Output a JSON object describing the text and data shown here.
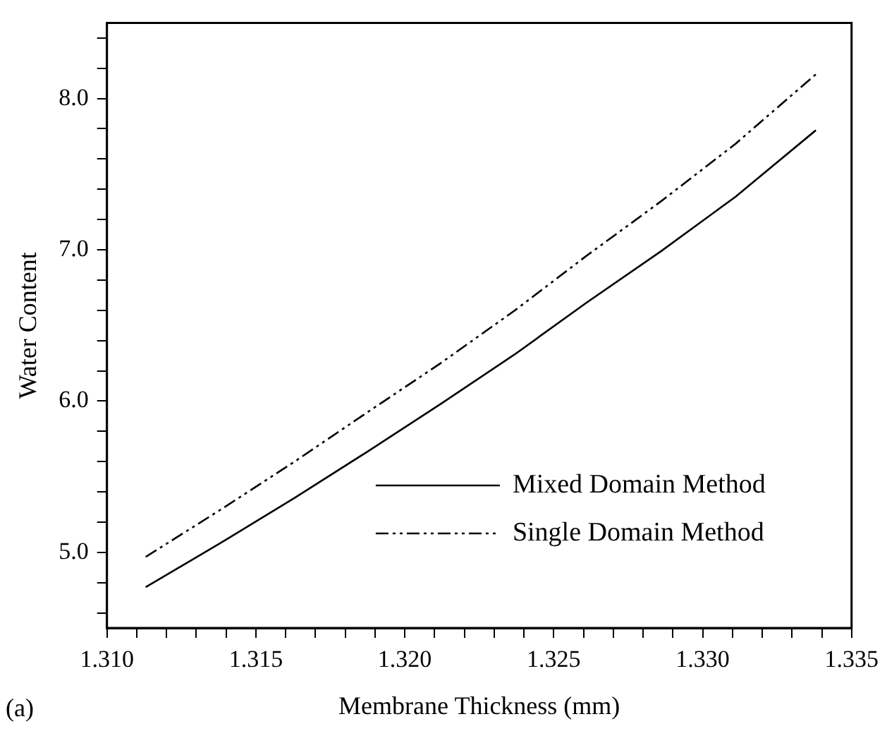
{
  "chart_data": {
    "type": "line",
    "xlabel": "Membrane Thickness (mm)",
    "ylabel": "Water Content",
    "annotations": [
      "(a)"
    ],
    "x": [
      1.3113,
      1.3138,
      1.3163,
      1.3187,
      1.3212,
      1.3237,
      1.3261,
      1.3286,
      1.3311,
      1.3338
    ],
    "series": [
      {
        "name": "Mixed Domain Method",
        "color": "#000000",
        "line_style": "solid",
        "values": [
          4.77,
          5.06,
          5.36,
          5.66,
          5.98,
          6.31,
          6.65,
          6.99,
          7.35,
          7.79
        ]
      },
      {
        "name": "Single Domain Method",
        "color": "#000000",
        "line_style": "dashed",
        "values": [
          4.97,
          5.28,
          5.6,
          5.92,
          6.25,
          6.6,
          6.96,
          7.32,
          7.7,
          8.16
        ]
      }
    ],
    "xlim": [
      1.31,
      1.335
    ],
    "ylim": [
      4.5,
      8.5
    ],
    "xticks": [
      {
        "value": 1.31,
        "label": "1.310"
      },
      {
        "value": 1.311,
        "label": null
      },
      {
        "value": 1.312,
        "label": null
      },
      {
        "value": 1.313,
        "label": null
      },
      {
        "value": 1.314,
        "label": null
      },
      {
        "value": 1.315,
        "label": "1.315"
      },
      {
        "value": 1.316,
        "label": null
      },
      {
        "value": 1.317,
        "label": null
      },
      {
        "value": 1.318,
        "label": null
      },
      {
        "value": 1.319,
        "label": null
      },
      {
        "value": 1.32,
        "label": "1.320"
      },
      {
        "value": 1.321,
        "label": null
      },
      {
        "value": 1.322,
        "label": null
      },
      {
        "value": 1.323,
        "label": null
      },
      {
        "value": 1.324,
        "label": null
      },
      {
        "value": 1.325,
        "label": "1.325"
      },
      {
        "value": 1.326,
        "label": null
      },
      {
        "value": 1.327,
        "label": null
      },
      {
        "value": 1.328,
        "label": null
      },
      {
        "value": 1.329,
        "label": null
      },
      {
        "value": 1.33,
        "label": "1.330"
      },
      {
        "value": 1.331,
        "label": null
      },
      {
        "value": 1.332,
        "label": null
      },
      {
        "value": 1.333,
        "label": null
      },
      {
        "value": 1.334,
        "label": null
      },
      {
        "value": 1.335,
        "label": "1.335"
      }
    ],
    "yticks": [
      {
        "value": 4.6,
        "label": null
      },
      {
        "value": 4.8,
        "label": null
      },
      {
        "value": 5,
        "label": "5.0"
      },
      {
        "value": 5.2,
        "label": null
      },
      {
        "value": 5.4,
        "label": null
      },
      {
        "value": 5.6,
        "label": null
      },
      {
        "value": 5.8,
        "label": null
      },
      {
        "value": 6,
        "label": "6.0"
      },
      {
        "value": 6.2,
        "label": null
      },
      {
        "value": 6.4,
        "label": null
      },
      {
        "value": 6.6,
        "label": null
      },
      {
        "value": 6.8,
        "label": null
      },
      {
        "value": 7,
        "label": "7.0"
      },
      {
        "value": 7.2,
        "label": null
      },
      {
        "value": 7.4,
        "label": null
      },
      {
        "value": 7.6,
        "label": null
      },
      {
        "value": 7.8,
        "label": null
      },
      {
        "value": 8,
        "label": "8.0"
      },
      {
        "value": 8.2,
        "label": null
      },
      {
        "value": 8.4,
        "label": null
      }
    ],
    "grid": false,
    "legend": "bottom right",
    "marker": "none"
  }
}
